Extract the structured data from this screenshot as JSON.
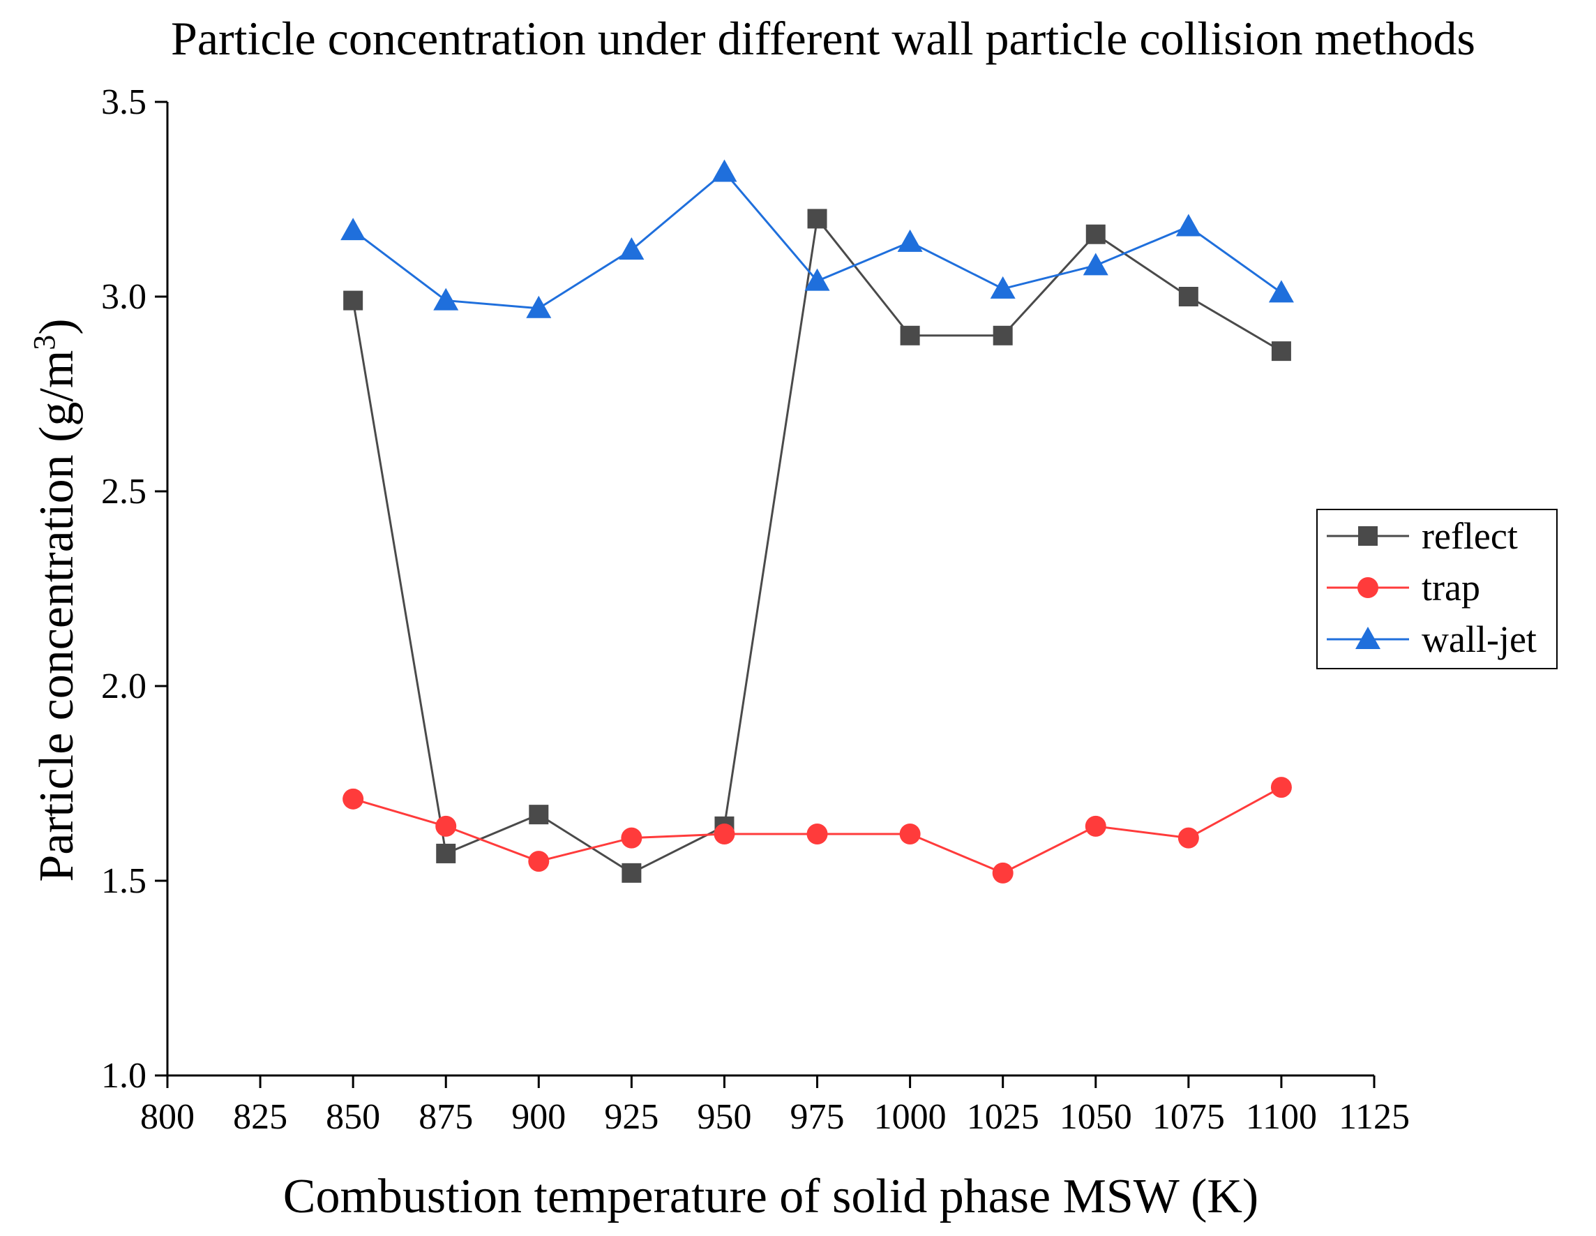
{
  "chart_data": {
    "type": "line",
    "title": "Particle concentration under different wall particle collision methods",
    "xlabel": "Combustion temperature of solid phase MSW (K)",
    "ylabel_main": "Particle concentration (g/m",
    "ylabel_sup": "3",
    "ylabel_close": ")",
    "xlim": [
      800,
      1125
    ],
    "ylim": [
      1.0,
      3.5
    ],
    "x_ticks": [
      "800",
      "825",
      "850",
      "875",
      "900",
      "925",
      "950",
      "975",
      "1000",
      "1025",
      "1050",
      "1075",
      "1100",
      "1125"
    ],
    "x_tick_values": [
      800,
      825,
      850,
      875,
      900,
      925,
      950,
      975,
      1000,
      1025,
      1050,
      1075,
      1100,
      1125
    ],
    "y_ticks": [
      "1.0",
      "1.5",
      "2.0",
      "2.5",
      "3.0",
      "3.5"
    ],
    "y_tick_values": [
      1.0,
      1.5,
      2.0,
      2.5,
      3.0,
      3.5
    ],
    "x": [
      850,
      875,
      900,
      925,
      950,
      975,
      1000,
      1025,
      1050,
      1075,
      1100
    ],
    "series": [
      {
        "name": "reflect",
        "color": "#4a4a4a",
        "marker": "square",
        "values": [
          2.99,
          1.57,
          1.67,
          1.52,
          1.64,
          3.2,
          2.9,
          2.9,
          3.16,
          3.0,
          2.86
        ]
      },
      {
        "name": "trap",
        "color": "#ff3b3b",
        "marker": "circle",
        "values": [
          1.71,
          1.64,
          1.55,
          1.61,
          1.62,
          1.62,
          1.62,
          1.52,
          1.64,
          1.61,
          1.74
        ]
      },
      {
        "name": "wall-jet",
        "color": "#1f6fdc",
        "marker": "triangle",
        "values": [
          3.17,
          2.99,
          2.97,
          3.12,
          3.32,
          3.04,
          3.14,
          3.02,
          3.08,
          3.18,
          3.01
        ]
      }
    ],
    "legend_position": "right"
  }
}
